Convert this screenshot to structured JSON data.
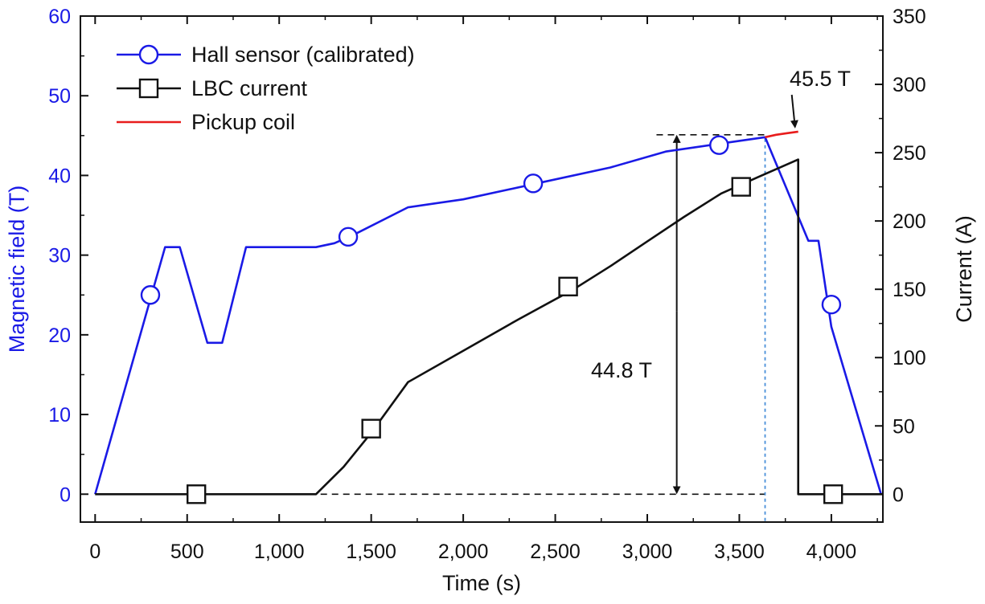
{
  "chart_data": {
    "type": "line",
    "xlabel": "Time (s)",
    "ylabel_left": "Magnetic field (T)",
    "ylabel_right": "Current (A)",
    "xlim": [
      -80,
      4280
    ],
    "ylim_left": [
      -3.5,
      60
    ],
    "ylim_right": [
      -20.4,
      350
    ],
    "x_ticks": [
      0,
      500,
      1000,
      1500,
      2000,
      2500,
      3000,
      3500,
      4000
    ],
    "x_tick_labels": [
      "0",
      "500",
      "1,000",
      "1,500",
      "2,000",
      "2,500",
      "3,000",
      "3,500",
      "4,000"
    ],
    "y_left_ticks": [
      0,
      10,
      20,
      30,
      40,
      50,
      60
    ],
    "y_left_tick_labels": [
      "0",
      "10",
      "20",
      "30",
      "40",
      "50",
      "60"
    ],
    "y_right_ticks": [
      0,
      50,
      100,
      150,
      200,
      250,
      300,
      350
    ],
    "y_right_tick_labels": [
      "0",
      "50",
      "100",
      "150",
      "200",
      "250",
      "300",
      "350"
    ],
    "grid": false,
    "legend_position": "top-left",
    "series": [
      {
        "name": "Hall sensor (calibrated)",
        "axis": "left",
        "color": "#1a1ae6",
        "marker": "circle",
        "x": [
          0,
          380,
          460,
          610,
          690,
          820,
          1200,
          1300,
          1400,
          1700,
          2000,
          2400,
          2800,
          3100,
          3400,
          3640,
          3640,
          3875,
          3930,
          4000,
          4270
        ],
        "y": [
          0,
          31,
          31,
          19,
          19,
          31,
          31,
          31.5,
          32.5,
          36,
          37,
          39,
          41,
          43,
          44,
          44.8,
          44.8,
          31.8,
          31.8,
          21,
          0
        ],
        "marker_x": [
          300,
          1375,
          2380,
          3390,
          4000
        ],
        "marker_y": [
          25,
          32.3,
          39,
          43.8,
          23.8
        ]
      },
      {
        "name": "LBC current",
        "axis": "right",
        "color": "#111111",
        "marker": "square",
        "x": [
          0,
          1200,
          1350,
          1500,
          1700,
          2000,
          2300,
          2600,
          2800,
          3000,
          3200,
          3400,
          3600,
          3820,
          3820,
          3840,
          4280
        ],
        "y": [
          0,
          0,
          20,
          45,
          82,
          105,
          128,
          150,
          167,
          185,
          203,
          220,
          232,
          245,
          0,
          0,
          0
        ],
        "marker_x": [
          550,
          1500,
          2570,
          3510,
          4010
        ],
        "marker_y": [
          0,
          48,
          152,
          225,
          0
        ]
      },
      {
        "name": "Pickup coil",
        "axis": "left",
        "color": "#e81c1c",
        "marker": "none",
        "x": [
          3640,
          3700,
          3760,
          3820
        ],
        "y": [
          44.8,
          45.1,
          45.3,
          45.5
        ]
      }
    ],
    "annotations": [
      {
        "text": "45.5 T",
        "x": 3820,
        "y": 45.5
      },
      {
        "text": "44.8 T",
        "x": 3160,
        "y": 22.4
      }
    ],
    "reference_lines": {
      "peak_level_y": 45.1,
      "zero_level_y": 0,
      "double_arrow_x": 3160,
      "vertical_dotted_x": 3640
    },
    "colors": {
      "left_axis": "#1a1ae6",
      "right_axis": "#111111",
      "pickup": "#e81c1c",
      "guide": "#4a90d9"
    }
  }
}
